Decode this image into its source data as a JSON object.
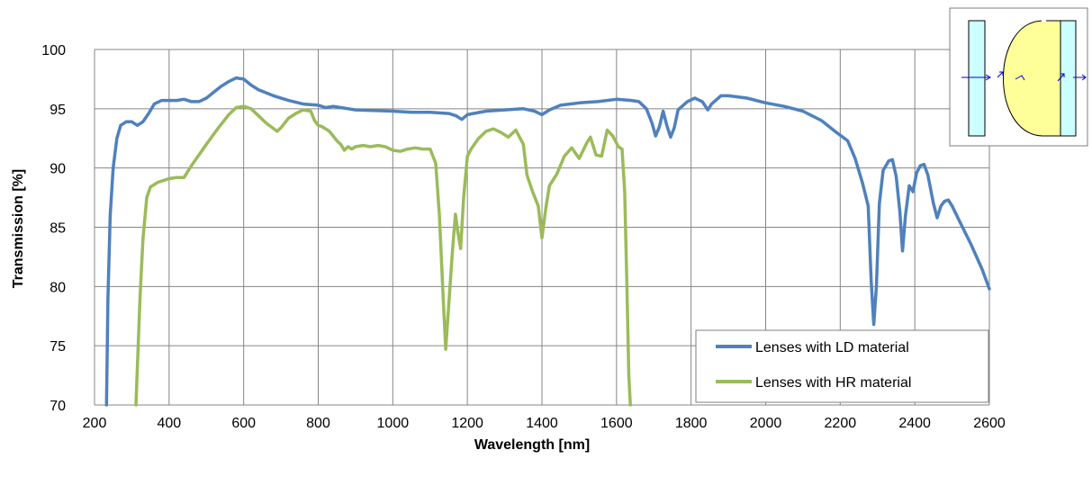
{
  "chart_data": {
    "type": "line",
    "title": "",
    "xlabel": "Wavelength [nm]",
    "ylabel": "Transmission [%]",
    "xlim": [
      200,
      2600
    ],
    "ylim": [
      70,
      100
    ],
    "x_ticks": [
      "200",
      "400",
      "600",
      "800",
      "1000",
      "1200",
      "1400",
      "1600",
      "1800",
      "2000",
      "2200",
      "2400",
      "2600"
    ],
    "y_ticks": [
      "70",
      "75",
      "80",
      "85",
      "90",
      "95",
      "100"
    ],
    "grid": true,
    "legend_position": "bottom-right",
    "inset": "lens-diagram-top-right",
    "series": [
      {
        "name": "Lenses with LD material",
        "color": "#4f81bd",
        "points": [
          [
            232,
            70
          ],
          [
            236,
            79
          ],
          [
            242,
            86
          ],
          [
            250,
            90
          ],
          [
            260,
            92.5
          ],
          [
            270,
            93.6
          ],
          [
            285,
            93.9
          ],
          [
            300,
            93.9
          ],
          [
            315,
            93.6
          ],
          [
            330,
            93.9
          ],
          [
            345,
            94.6
          ],
          [
            360,
            95.4
          ],
          [
            380,
            95.7
          ],
          [
            400,
            95.7
          ],
          [
            420,
            95.7
          ],
          [
            440,
            95.8
          ],
          [
            460,
            95.6
          ],
          [
            480,
            95.6
          ],
          [
            500,
            95.9
          ],
          [
            520,
            96.4
          ],
          [
            540,
            96.9
          ],
          [
            560,
            97.3
          ],
          [
            580,
            97.6
          ],
          [
            600,
            97.5
          ],
          [
            620,
            97.0
          ],
          [
            640,
            96.6
          ],
          [
            680,
            96.1
          ],
          [
            720,
            95.7
          ],
          [
            760,
            95.4
          ],
          [
            800,
            95.3
          ],
          [
            820,
            95.1
          ],
          [
            840,
            95.2
          ],
          [
            900,
            94.9
          ],
          [
            1000,
            94.8
          ],
          [
            1050,
            94.7
          ],
          [
            1100,
            94.7
          ],
          [
            1150,
            94.6
          ],
          [
            1170,
            94.4
          ],
          [
            1185,
            94.1
          ],
          [
            1200,
            94.5
          ],
          [
            1250,
            94.8
          ],
          [
            1300,
            94.9
          ],
          [
            1350,
            95.0
          ],
          [
            1380,
            94.8
          ],
          [
            1400,
            94.5
          ],
          [
            1420,
            94.9
          ],
          [
            1450,
            95.3
          ],
          [
            1500,
            95.5
          ],
          [
            1550,
            95.6
          ],
          [
            1600,
            95.8
          ],
          [
            1640,
            95.7
          ],
          [
            1660,
            95.6
          ],
          [
            1680,
            95.0
          ],
          [
            1695,
            93.8
          ],
          [
            1705,
            92.7
          ],
          [
            1715,
            93.5
          ],
          [
            1725,
            94.8
          ],
          [
            1735,
            93.6
          ],
          [
            1745,
            92.6
          ],
          [
            1755,
            93.4
          ],
          [
            1765,
            94.9
          ],
          [
            1790,
            95.6
          ],
          [
            1810,
            95.9
          ],
          [
            1830,
            95.6
          ],
          [
            1845,
            94.9
          ],
          [
            1855,
            95.4
          ],
          [
            1880,
            96.1
          ],
          [
            1900,
            96.1
          ],
          [
            1950,
            95.9
          ],
          [
            2000,
            95.5
          ],
          [
            2050,
            95.2
          ],
          [
            2100,
            94.8
          ],
          [
            2150,
            94.0
          ],
          [
            2190,
            93.0
          ],
          [
            2220,
            92.3
          ],
          [
            2240,
            90.8
          ],
          [
            2260,
            88.7
          ],
          [
            2275,
            86.8
          ],
          [
            2283,
            80.5
          ],
          [
            2290,
            76.8
          ],
          [
            2297,
            80.0
          ],
          [
            2305,
            87.0
          ],
          [
            2315,
            89.8
          ],
          [
            2330,
            90.6
          ],
          [
            2340,
            90.7
          ],
          [
            2350,
            89.3
          ],
          [
            2360,
            86.3
          ],
          [
            2367,
            83.0
          ],
          [
            2375,
            86.0
          ],
          [
            2385,
            88.5
          ],
          [
            2395,
            88.0
          ],
          [
            2405,
            89.6
          ],
          [
            2415,
            90.2
          ],
          [
            2425,
            90.3
          ],
          [
            2435,
            89.4
          ],
          [
            2450,
            87.0
          ],
          [
            2460,
            85.8
          ],
          [
            2470,
            86.8
          ],
          [
            2480,
            87.2
          ],
          [
            2490,
            87.3
          ],
          [
            2500,
            86.8
          ],
          [
            2520,
            85.5
          ],
          [
            2550,
            83.6
          ],
          [
            2580,
            81.5
          ],
          [
            2600,
            79.8
          ]
        ]
      },
      {
        "name": "Lenses with HR material",
        "color": "#9bbb59",
        "points": [
          [
            311,
            70
          ],
          [
            316,
            74
          ],
          [
            322,
            79
          ],
          [
            330,
            84
          ],
          [
            340,
            87.5
          ],
          [
            350,
            88.4
          ],
          [
            370,
            88.8
          ],
          [
            400,
            89.1
          ],
          [
            420,
            89.2
          ],
          [
            440,
            89.2
          ],
          [
            460,
            90.2
          ],
          [
            500,
            92.0
          ],
          [
            530,
            93.3
          ],
          [
            560,
            94.5
          ],
          [
            580,
            95.1
          ],
          [
            600,
            95.2
          ],
          [
            620,
            95.0
          ],
          [
            640,
            94.4
          ],
          [
            660,
            93.8
          ],
          [
            690,
            93.1
          ],
          [
            700,
            93.4
          ],
          [
            720,
            94.2
          ],
          [
            740,
            94.6
          ],
          [
            760,
            94.9
          ],
          [
            780,
            94.8
          ],
          [
            790,
            94.0
          ],
          [
            800,
            93.6
          ],
          [
            810,
            93.5
          ],
          [
            820,
            93.3
          ],
          [
            830,
            93.1
          ],
          [
            840,
            92.7
          ],
          [
            850,
            92.3
          ],
          [
            860,
            92.0
          ],
          [
            870,
            91.5
          ],
          [
            880,
            91.8
          ],
          [
            890,
            91.6
          ],
          [
            900,
            91.8
          ],
          [
            920,
            91.9
          ],
          [
            940,
            91.8
          ],
          [
            960,
            91.9
          ],
          [
            980,
            91.8
          ],
          [
            1000,
            91.5
          ],
          [
            1020,
            91.4
          ],
          [
            1040,
            91.6
          ],
          [
            1060,
            91.7
          ],
          [
            1080,
            91.6
          ],
          [
            1100,
            91.6
          ],
          [
            1115,
            90.4
          ],
          [
            1125,
            86.0
          ],
          [
            1135,
            79.2
          ],
          [
            1142,
            74.7
          ],
          [
            1150,
            78.5
          ],
          [
            1160,
            83.0
          ],
          [
            1168,
            86.1
          ],
          [
            1175,
            84.5
          ],
          [
            1182,
            83.2
          ],
          [
            1190,
            87.5
          ],
          [
            1200,
            91.0
          ],
          [
            1210,
            91.6
          ],
          [
            1230,
            92.5
          ],
          [
            1250,
            93.1
          ],
          [
            1270,
            93.3
          ],
          [
            1290,
            93.0
          ],
          [
            1310,
            92.6
          ],
          [
            1330,
            93.2
          ],
          [
            1350,
            92.0
          ],
          [
            1360,
            89.4
          ],
          [
            1375,
            88.0
          ],
          [
            1390,
            86.8
          ],
          [
            1400,
            84.1
          ],
          [
            1410,
            86.5
          ],
          [
            1420,
            88.5
          ],
          [
            1440,
            89.5
          ],
          [
            1460,
            91.0
          ],
          [
            1480,
            91.7
          ],
          [
            1500,
            90.8
          ],
          [
            1520,
            92.1
          ],
          [
            1530,
            92.6
          ],
          [
            1545,
            91.1
          ],
          [
            1560,
            91.0
          ],
          [
            1575,
            93.2
          ],
          [
            1590,
            92.7
          ],
          [
            1605,
            91.8
          ],
          [
            1615,
            91.6
          ],
          [
            1622,
            88.0
          ],
          [
            1628,
            80.0
          ],
          [
            1633,
            72.5
          ],
          [
            1637,
            70
          ]
        ]
      }
    ]
  }
}
